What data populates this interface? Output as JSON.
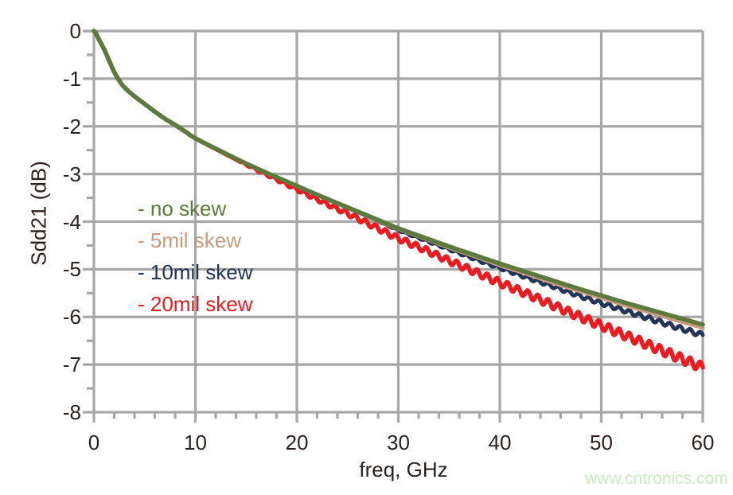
{
  "page": {
    "background": "#ffffff"
  },
  "watermark": {
    "text": "www.cntronics.com",
    "color": "#c9ecc3"
  },
  "chart_data": {
    "type": "line",
    "title": "",
    "xlabel": "freq, GHz",
    "ylabel": "Sdd21 (dB)",
    "xlim": [
      0,
      60
    ],
    "ylim": [
      -8,
      0
    ],
    "x_major_ticks": [
      0,
      10,
      20,
      30,
      40,
      50,
      60
    ],
    "y_major_ticks": [
      0,
      -1,
      -2,
      -3,
      -4,
      -5,
      -6,
      -7,
      -8
    ],
    "x_minor_step": 2,
    "y_minor_step": 0.5,
    "grid": true,
    "grid_color": "#a7a7a7",
    "axis_text_color": "#2a2220",
    "legend_position": "inside-left",
    "x": [
      0,
      0.2,
      0.5,
      1,
      1.5,
      2,
      2.5,
      3,
      4,
      5,
      6,
      7,
      8,
      9,
      10,
      12.5,
      15,
      17.5,
      20,
      22.5,
      25,
      27.5,
      30,
      32.5,
      35,
      37.5,
      40,
      42.5,
      45,
      47.5,
      50,
      52.5,
      55,
      57.5,
      60
    ],
    "series": [
      {
        "name": "no-skew",
        "label": "- no skew",
        "color": "#5c7a3d",
        "width": 5.5,
        "values": [
          0,
          -0.05,
          -0.18,
          -0.38,
          -0.62,
          -0.86,
          -1.04,
          -1.18,
          -1.37,
          -1.53,
          -1.69,
          -1.84,
          -1.97,
          -2.11,
          -2.25,
          -2.52,
          -2.78,
          -3.02,
          -3.25,
          -3.48,
          -3.7,
          -3.92,
          -4.14,
          -4.33,
          -4.52,
          -4.7,
          -4.88,
          -5.05,
          -5.22,
          -5.39,
          -5.55,
          -5.71,
          -5.86,
          -6.01,
          -6.16
        ]
      },
      {
        "name": "5mil-skew",
        "label": "- 5mil skew",
        "color": "#c89b7e",
        "width": 4.5,
        "values": [
          0,
          -0.05,
          -0.18,
          -0.38,
          -0.62,
          -0.86,
          -1.04,
          -1.18,
          -1.37,
          -1.53,
          -1.69,
          -1.84,
          -1.97,
          -2.11,
          -2.25,
          -2.52,
          -2.78,
          -3.02,
          -3.25,
          -3.49,
          -3.71,
          -3.94,
          -4.16,
          -4.35,
          -4.55,
          -4.73,
          -4.92,
          -5.09,
          -5.27,
          -5.44,
          -5.6,
          -5.77,
          -5.92,
          -6.08,
          -6.23
        ]
      },
      {
        "name": "10mil-skew",
        "label": "- 10mil skew",
        "color": "#233457",
        "width": 5,
        "values": [
          0,
          -0.05,
          -0.18,
          -0.38,
          -0.62,
          -0.86,
          -1.04,
          -1.18,
          -1.37,
          -1.53,
          -1.69,
          -1.84,
          -1.97,
          -2.11,
          -2.25,
          -2.52,
          -2.78,
          -3.02,
          -3.25,
          -3.48,
          -3.71,
          -3.94,
          -4.18,
          -4.38,
          -4.58,
          -4.78,
          -4.97,
          -5.16,
          -5.34,
          -5.53,
          -5.71,
          -5.88,
          -6.05,
          -6.22,
          -6.38
        ],
        "ripple": {
          "start_ghz": 28,
          "amplitude_db": 0.05,
          "period_ghz": 1.0
        }
      },
      {
        "name": "20mil-skew",
        "label": "- 20mil skew",
        "color": "#ea1c22",
        "width": 5.5,
        "values": [
          0,
          -0.05,
          -0.18,
          -0.38,
          -0.62,
          -0.86,
          -1.04,
          -1.18,
          -1.37,
          -1.53,
          -1.69,
          -1.84,
          -1.97,
          -2.11,
          -2.25,
          -2.53,
          -2.8,
          -3.06,
          -3.32,
          -3.58,
          -3.83,
          -4.09,
          -4.35,
          -4.58,
          -4.82,
          -5.05,
          -5.28,
          -5.5,
          -5.73,
          -5.96,
          -6.18,
          -6.4,
          -6.62,
          -6.84,
          -7.06
        ],
        "ripple": {
          "start_ghz": 14,
          "amplitude_db": 0.1,
          "period_ghz": 1.0
        }
      }
    ],
    "draw_order": [
      3,
      2,
      1,
      0
    ]
  }
}
